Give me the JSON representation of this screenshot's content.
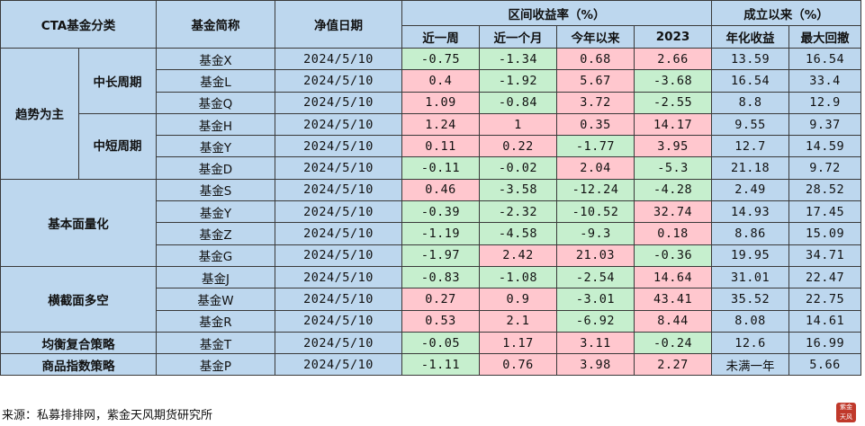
{
  "header": {
    "cta_category": "CTA基金分类",
    "fund_name": "基金简称",
    "nav_date": "净值日期",
    "interval_return": "区间收益率（%）",
    "since_inception": "成立以来（%）",
    "week": "近一周",
    "month": "近一个月",
    "ytd": "今年以来",
    "y2023": "2023",
    "annualized": "年化收益",
    "max_drawdown": "最大回撤"
  },
  "categories": {
    "trend": "趋势为主",
    "mid_long": "中长周期",
    "mid_short": "中短周期",
    "fundamental": "基本面量化",
    "cross_section": "横截面多空",
    "balanced": "均衡复合策略",
    "commodity": "商品指数策略"
  },
  "rows": [
    {
      "name": "基金X",
      "date": "2024/5/10",
      "week": "-0.75",
      "month": "-1.34",
      "ytd": "0.68",
      "y2023": "2.66",
      "ann": "13.59",
      "mdd": "16.54"
    },
    {
      "name": "基金L",
      "date": "2024/5/10",
      "week": "0.4",
      "month": "-1.92",
      "ytd": "5.67",
      "y2023": "-3.68",
      "ann": "16.54",
      "mdd": "33.4"
    },
    {
      "name": "基金Q",
      "date": "2024/5/10",
      "week": "1.09",
      "month": "-0.84",
      "ytd": "3.72",
      "y2023": "-2.55",
      "ann": "8.8",
      "mdd": "12.9"
    },
    {
      "name": "基金H",
      "date": "2024/5/10",
      "week": "1.24",
      "month": "1",
      "ytd": "0.35",
      "y2023": "14.17",
      "ann": "9.55",
      "mdd": "9.37"
    },
    {
      "name": "基金Y",
      "date": "2024/5/10",
      "week": "0.11",
      "month": "0.22",
      "ytd": "-1.77",
      "y2023": "3.95",
      "ann": "12.7",
      "mdd": "14.59"
    },
    {
      "name": "基金D",
      "date": "2024/5/10",
      "week": "-0.11",
      "month": "-0.02",
      "ytd": "2.04",
      "y2023": "-5.3",
      "ann": "21.18",
      "mdd": "9.72"
    },
    {
      "name": "基金S",
      "date": "2024/5/10",
      "week": "0.46",
      "month": "-3.58",
      "ytd": "-12.24",
      "y2023": "-4.28",
      "ann": "2.49",
      "mdd": "28.52"
    },
    {
      "name": "基金Y",
      "date": "2024/5/10",
      "week": "-0.39",
      "month": "-2.32",
      "ytd": "-10.52",
      "y2023": "32.74",
      "ann": "14.93",
      "mdd": "17.45"
    },
    {
      "name": "基金Z",
      "date": "2024/5/10",
      "week": "-1.19",
      "month": "-4.58",
      "ytd": "-9.3",
      "y2023": "0.18",
      "ann": "8.86",
      "mdd": "15.09"
    },
    {
      "name": "基金G",
      "date": "2024/5/10",
      "week": "-1.97",
      "month": "2.42",
      "ytd": "21.03",
      "y2023": "-0.36",
      "ann": "19.95",
      "mdd": "34.71"
    },
    {
      "name": "基金J",
      "date": "2024/5/10",
      "week": "-0.83",
      "month": "-1.08",
      "ytd": "-2.54",
      "y2023": "14.64",
      "ann": "31.01",
      "mdd": "22.47"
    },
    {
      "name": "基金W",
      "date": "2024/5/10",
      "week": "0.27",
      "month": "0.9",
      "ytd": "-3.01",
      "y2023": "43.41",
      "ann": "35.52",
      "mdd": "22.75"
    },
    {
      "name": "基金R",
      "date": "2024/5/10",
      "week": "0.53",
      "month": "2.1",
      "ytd": "-6.92",
      "y2023": "8.44",
      "ann": "8.08",
      "mdd": "14.61"
    },
    {
      "name": "基金T",
      "date": "2024/5/10",
      "week": "-0.05",
      "month": "1.17",
      "ytd": "3.11",
      "y2023": "-0.24",
      "ann": "12.6",
      "mdd": "16.99"
    },
    {
      "name": "基金P",
      "date": "2024/5/10",
      "week": "-1.11",
      "month": "0.76",
      "ytd": "3.98",
      "y2023": "2.27",
      "ann": "未满一年",
      "mdd": "5.66"
    }
  ],
  "source": "来源：私募排排网，紫金天风期货研究所",
  "seal_text": "紫金天风",
  "colors": {
    "header_bg": "#bdd7ee",
    "positive_bg": "#ffc7ce",
    "negative_bg": "#c6efce",
    "highlight_text": "#00b050"
  }
}
